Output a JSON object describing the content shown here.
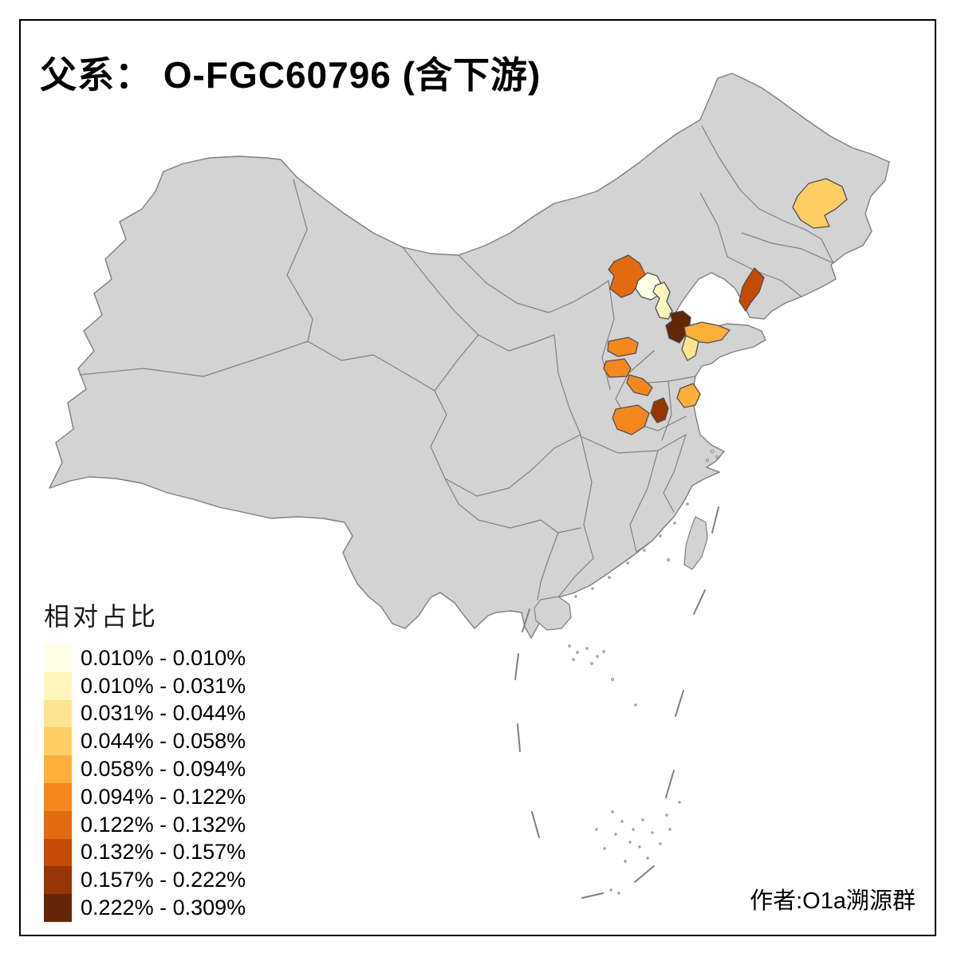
{
  "title": "父系： O-FGC60796 (含下游)",
  "author_credit": "作者:O1a溯源群",
  "legend": {
    "title": "相对占比",
    "items": [
      {
        "label": "0.010% - 0.010%",
        "color": "#FFFFE5"
      },
      {
        "label": "0.010% - 0.031%",
        "color": "#FEF5BE"
      },
      {
        "label": "0.031% - 0.044%",
        "color": "#FEE391"
      },
      {
        "label": "0.044% - 0.058%",
        "color": "#FECE65"
      },
      {
        "label": "0.058% - 0.094%",
        "color": "#FDAE3B"
      },
      {
        "label": "0.094% - 0.122%",
        "color": "#F5871F"
      },
      {
        "label": "0.122% - 0.132%",
        "color": "#E26A10"
      },
      {
        "label": "0.132% - 0.157%",
        "color": "#C34B04"
      },
      {
        "label": "0.157% - 0.222%",
        "color": "#963605"
      },
      {
        "label": "0.222% - 0.309%",
        "color": "#632606"
      }
    ]
  },
  "chart_data": {
    "type": "choropleth",
    "title": "父系： O-FGC60796 (含下游)",
    "value_name": "相对占比",
    "classes": [
      "0.010% - 0.010%",
      "0.010% - 0.031%",
      "0.031% - 0.044%",
      "0.044% - 0.058%",
      "0.058% - 0.094%",
      "0.094% - 0.122%",
      "0.122% - 0.132%",
      "0.132% - 0.157%",
      "0.157% - 0.222%",
      "0.222% - 0.309%"
    ],
    "regions": [
      {
        "key": "heilongjiang-central",
        "class": 3
      },
      {
        "key": "hebei-northwest",
        "class": 6
      },
      {
        "key": "beijing",
        "class": 0
      },
      {
        "key": "tianjin",
        "class": 1
      },
      {
        "key": "hebei-southeast-coastal",
        "class": 9
      },
      {
        "key": "liaoning-south-peninsula",
        "class": 7
      },
      {
        "key": "shandong-peninsula-north",
        "class": 4
      },
      {
        "key": "shandong-peninsula-south",
        "class": 2
      },
      {
        "key": "shanxi-east",
        "class": 5
      },
      {
        "key": "shanxi-southeast",
        "class": 5
      },
      {
        "key": "henan-north",
        "class": 5
      },
      {
        "key": "henan-west",
        "class": 5
      },
      {
        "key": "henan-central",
        "class": 8
      },
      {
        "key": "anhui-north",
        "class": 4
      }
    ]
  },
  "map": {
    "base_fill": "#D3D3D3",
    "border_color": "#7F7F7F",
    "region_border": "#4F4F4F",
    "frame_color": "#000000",
    "sea_color": "#FFFFFF"
  }
}
